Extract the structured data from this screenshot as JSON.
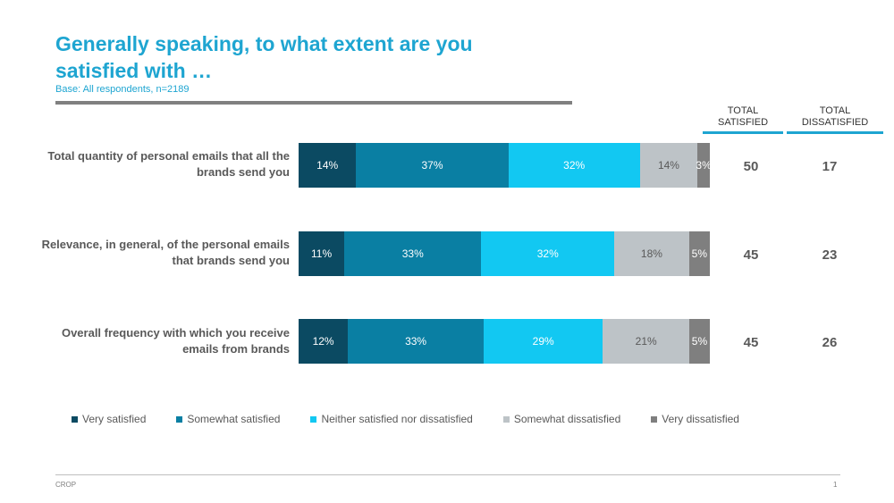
{
  "slide": {
    "title": "Generally speaking, to what extent are you satisfied with …",
    "subtitle": "Base: All respondents, n=2189",
    "footer_left": "CROP",
    "page_number": "1"
  },
  "columns": {
    "satisfied": "TOTAL SATISFIED",
    "dissatisfied": "TOTAL DISSATISFIED"
  },
  "chart_data": {
    "type": "bar",
    "orientation": "horizontal",
    "stacked": true,
    "categories": [
      "Total quantity of personal emails that all the brands send you",
      "Relevance, in general, of the personal emails that brands send you",
      "Overall frequency with which you receive emails from brands"
    ],
    "series": [
      {
        "name": "Very satisfied",
        "color": "#0b4a62",
        "values": [
          14,
          11,
          12
        ],
        "labels": [
          "14%",
          "11%",
          "12%"
        ]
      },
      {
        "name": "Somewhat satisfied",
        "color": "#0a7fa3",
        "values": [
          37,
          33,
          33
        ],
        "labels": [
          "37%",
          "33%",
          "33%"
        ]
      },
      {
        "name": "Neither satisfied nor dissatisfied",
        "color": "#12c8f2",
        "values": [
          32,
          32,
          29
        ],
        "labels": [
          "32%",
          "32%",
          "29%"
        ]
      },
      {
        "name": "Somewhat dissatisfied",
        "color": "#bdc3c7",
        "values": [
          14,
          18,
          21
        ],
        "labels": [
          "14%",
          "18%",
          "21%"
        ]
      },
      {
        "name": "Very dissatisfied",
        "color": "#7f7f7f",
        "values": [
          3,
          5,
          5
        ],
        "labels": [
          "3%",
          "5%",
          "5%"
        ]
      }
    ],
    "totals": {
      "satisfied": [
        "50",
        "45",
        "45"
      ],
      "dissatisfied": [
        "17",
        "23",
        "26"
      ]
    },
    "legend_position": "bottom"
  }
}
